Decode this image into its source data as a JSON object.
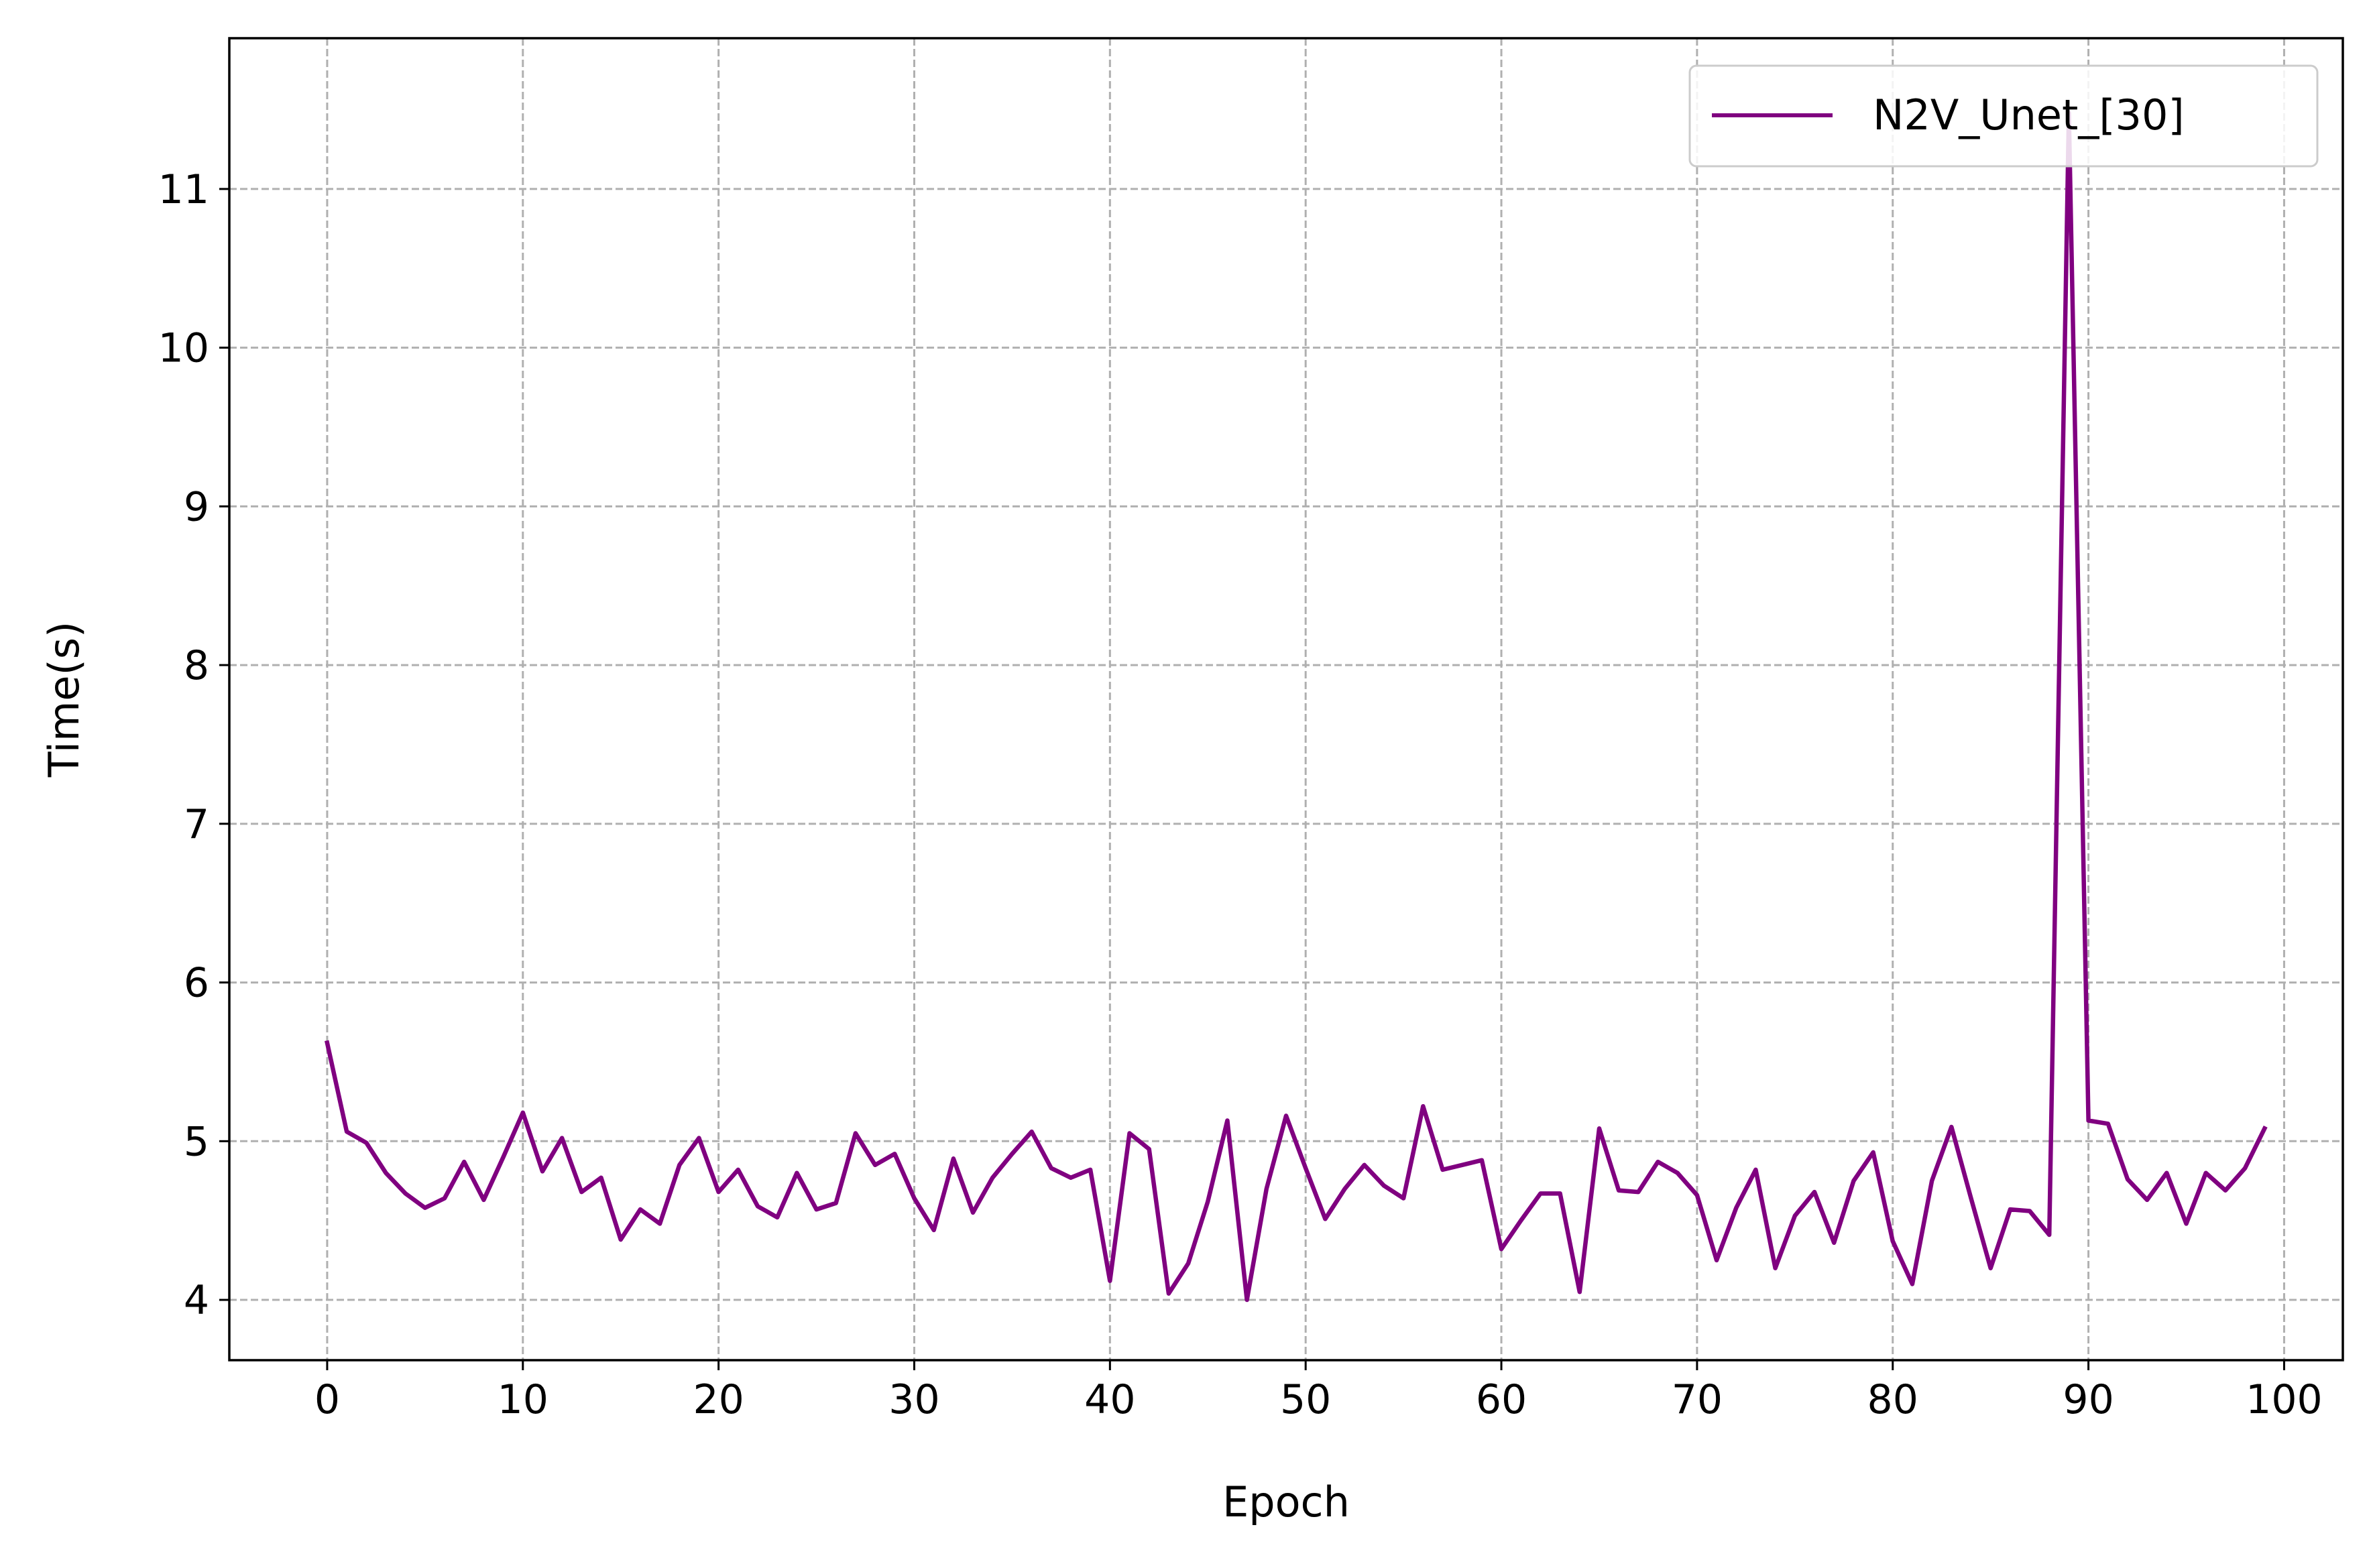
{
  "chart_data": {
    "type": "line",
    "xlabel": "Epoch",
    "ylabel": "Time(s)",
    "xlim": [
      -5,
      103
    ],
    "ylim": [
      3.62,
      11.95
    ],
    "xticks": [
      0,
      10,
      20,
      30,
      40,
      50,
      60,
      70,
      80,
      90,
      100
    ],
    "yticks": [
      4,
      5,
      6,
      7,
      8,
      9,
      10,
      11
    ],
    "grid": true,
    "grid_style": "dashed",
    "legend_position": "top-right",
    "series": [
      {
        "name": "N2V_Unet_[30]",
        "color": "#800080",
        "x": [
          0,
          1,
          2,
          3,
          4,
          5,
          6,
          7,
          8,
          9,
          10,
          11,
          12,
          13,
          14,
          15,
          16,
          17,
          18,
          19,
          20,
          21,
          22,
          23,
          24,
          25,
          26,
          27,
          28,
          29,
          30,
          31,
          32,
          33,
          34,
          35,
          36,
          37,
          38,
          39,
          40,
          41,
          42,
          43,
          44,
          45,
          46,
          47,
          48,
          49,
          50,
          51,
          52,
          53,
          54,
          55,
          56,
          57,
          58,
          59,
          60,
          61,
          62,
          63,
          64,
          65,
          66,
          67,
          68,
          69,
          70,
          71,
          72,
          73,
          74,
          75,
          76,
          77,
          78,
          79,
          80,
          81,
          82,
          83,
          84,
          85,
          86,
          87,
          88,
          89,
          90,
          91,
          92,
          93,
          94,
          95,
          96,
          97,
          98,
          99
        ],
        "values": [
          5.62,
          5.06,
          4.99,
          4.8,
          4.67,
          4.58,
          4.64,
          4.87,
          4.63,
          4.9,
          5.18,
          4.81,
          5.02,
          4.68,
          4.77,
          4.38,
          4.57,
          4.48,
          4.85,
          5.02,
          4.68,
          4.82,
          4.59,
          4.52,
          4.8,
          4.57,
          4.61,
          5.05,
          4.85,
          4.92,
          4.64,
          4.44,
          4.89,
          4.55,
          4.77,
          4.92,
          5.06,
          4.83,
          4.77,
          4.82,
          4.12,
          5.05,
          4.95,
          4.04,
          4.23,
          4.62,
          5.13,
          4.0,
          4.7,
          5.16,
          4.83,
          4.51,
          4.7,
          4.85,
          4.72,
          4.64,
          5.22,
          4.82,
          4.85,
          4.88,
          4.32,
          4.5,
          4.67,
          4.67,
          4.05,
          5.08,
          4.69,
          4.68,
          4.87,
          4.8,
          4.66,
          4.25,
          4.58,
          4.82,
          4.2,
          4.53,
          4.68,
          4.36,
          4.75,
          4.93,
          4.37,
          4.1,
          4.75,
          5.09,
          4.64,
          4.2,
          4.57,
          4.56,
          4.41,
          11.48,
          5.13,
          5.11,
          4.76,
          4.63,
          4.8,
          4.48,
          4.8,
          4.69,
          4.83,
          5.08
        ]
      }
    ]
  }
}
